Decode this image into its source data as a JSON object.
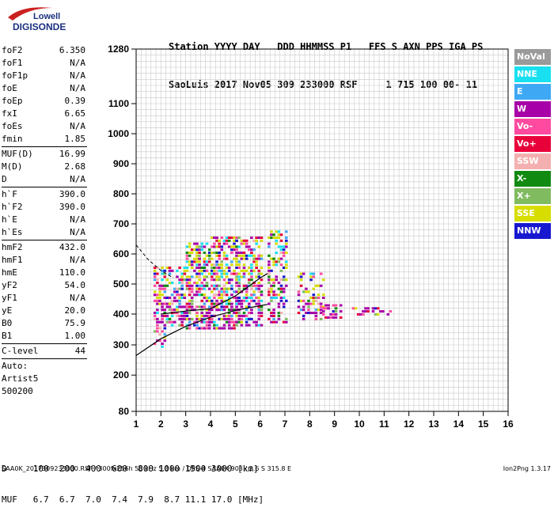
{
  "logo": {
    "line1": "Lowell",
    "line2": "DIGISONDE"
  },
  "header": {
    "line1": "Station YYYY DAY   DDD HHMMSS P1   FFS S AXN PPS IGA PS",
    "line2": "SaoLuis 2017 Nov05 309 233000 RSF     1 715 100 00- 11"
  },
  "params_groups": [
    [
      [
        "foF2",
        "6.350"
      ],
      [
        "foF1",
        "N/A"
      ],
      [
        "foF1p",
        "N/A"
      ],
      [
        "foE",
        "N/A"
      ],
      [
        "foEp",
        "0.39"
      ],
      [
        "fxI",
        "6.65"
      ],
      [
        "foEs",
        "N/A"
      ],
      [
        "fmin",
        "1.85"
      ]
    ],
    [
      [
        "MUF(D)",
        "16.99"
      ],
      [
        "M(D)",
        "2.68"
      ],
      [
        "D",
        "N/A"
      ]
    ],
    [
      [
        "h`F",
        "390.0"
      ],
      [
        "h`F2",
        "390.0"
      ],
      [
        "h`E",
        "N/A"
      ],
      [
        "h`Es",
        "N/A"
      ]
    ],
    [
      [
        "hmF2",
        "432.0"
      ],
      [
        "hmF1",
        "N/A"
      ],
      [
        "hmE",
        "110.0"
      ],
      [
        "yF2",
        "54.0"
      ],
      [
        "yF1",
        "N/A"
      ],
      [
        "yE",
        "20.0"
      ],
      [
        "B0",
        "75.9"
      ],
      [
        "B1",
        "1.00"
      ]
    ],
    [
      [
        "C-level",
        "44"
      ]
    ]
  ],
  "auto": {
    "line1": "Auto:",
    "line2": "Artist5",
    "line3": "500200"
  },
  "legend": [
    {
      "label": "NoVal",
      "color": "#9a9a9a"
    },
    {
      "label": "NNE",
      "color": "#19e0f0"
    },
    {
      "label": "E",
      "color": "#3fa8f5"
    },
    {
      "label": "W",
      "color": "#a800a8"
    },
    {
      "label": "Vo-",
      "color": "#ff4aa0"
    },
    {
      "label": "Vo+",
      "color": "#e8003a"
    },
    {
      "label": "SSW",
      "color": "#f4b0b0"
    },
    {
      "label": "X-",
      "color": "#118a11"
    },
    {
      "label": "X+",
      "color": "#80bb60"
    },
    {
      "label": "SSE",
      "color": "#d8dd00"
    },
    {
      "label": "NNW",
      "color": "#1818d0"
    }
  ],
  "bottom": {
    "row1": "D     100  200  400  600  800 1000 1500 3000 [km]",
    "row2": "MUF   6.7  6.7  7.0  7.4  7.9  8.7 11.1 17.0 [MHz]"
  },
  "footer": {
    "left": "SAA0K_2017309233000.RSF / 300fx256h 50 kHz 5.0 km / DPS-4 SAA0K 903 / 2.6 S 315.8 E",
    "right": "Ion2Png 1.3.17"
  },
  "chart_data": {
    "type": "scatter",
    "xlabel": "",
    "ylabel": "",
    "xlim": [
      1,
      16
    ],
    "ylim": [
      80,
      1280
    ],
    "x_ticks": [
      1,
      2,
      3,
      4,
      5,
      6,
      7,
      8,
      9,
      10,
      11,
      12,
      13,
      14,
      15,
      16
    ],
    "y_tick_labels": [
      80,
      200,
      300,
      400,
      500,
      600,
      700,
      800,
      900,
      1000,
      1100,
      1280
    ],
    "y_scale": "compressed-upper",
    "y_grid_step": 20,
    "x_grid_step": 0.2,
    "echo_clusters": [
      {
        "x_range": [
          1.7,
          2.2
        ],
        "y_range": [
          290,
          560
        ],
        "density": 0.55
      },
      {
        "x_range": [
          2.2,
          3.0
        ],
        "y_range": [
          360,
          560
        ],
        "density": 0.55
      },
      {
        "x_range": [
          3.0,
          4.0
        ],
        "y_range": [
          350,
          640
        ],
        "density": 0.6
      },
      {
        "x_range": [
          4.0,
          5.0
        ],
        "y_range": [
          350,
          660
        ],
        "density": 0.6
      },
      {
        "x_range": [
          5.0,
          6.0
        ],
        "y_range": [
          360,
          660
        ],
        "density": 0.55
      },
      {
        "x_range": [
          6.3,
          7.0
        ],
        "y_range": [
          370,
          680
        ],
        "density": 0.45
      },
      {
        "x_range": [
          7.5,
          8.5
        ],
        "y_range": [
          380,
          540
        ],
        "density": 0.4
      },
      {
        "x_range": [
          8.5,
          9.2
        ],
        "y_range": [
          385,
          430
        ],
        "density": 0.55
      },
      {
        "x_range": [
          9.7,
          11.3
        ],
        "y_range": [
          395,
          425
        ],
        "density": 0.35
      }
    ],
    "profile_lines": [
      {
        "name": "",
        "points": [
          [
            1,
            265
          ],
          [
            2,
            320
          ],
          [
            3,
            360
          ],
          [
            4,
            390
          ],
          [
            5,
            412
          ],
          [
            6,
            428
          ],
          [
            6.3,
            432
          ]
        ]
      },
      {
        "name": "",
        "points": [
          [
            2.0,
            400
          ],
          [
            3,
            410
          ],
          [
            4,
            418
          ],
          [
            5,
            460
          ],
          [
            6,
            520
          ],
          [
            6.3,
            535
          ]
        ]
      }
    ],
    "dashed_line": {
      "name": "",
      "points": [
        [
          1,
          630
        ],
        [
          1.5,
          580
        ],
        [
          2,
          545
        ],
        [
          2.5,
          520
        ]
      ]
    }
  }
}
